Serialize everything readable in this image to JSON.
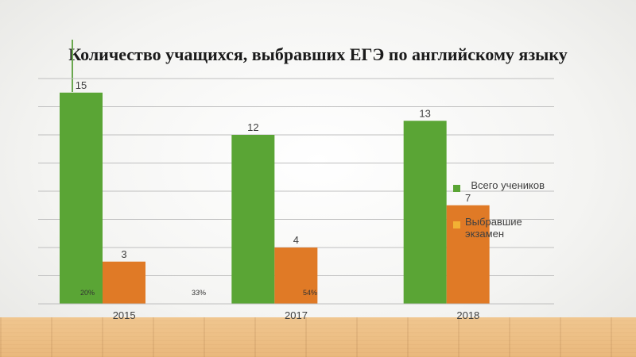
{
  "slide": {
    "title": "Количество учащихся, выбравших ЕГЭ по английскому языку"
  },
  "colors": {
    "series_total": "#5aa535",
    "series_chosen": "#e07a26",
    "gridline": "#bfbfbf",
    "axis_text": "#404040"
  },
  "chart_data": {
    "type": "bar",
    "title": "Количество учащихся, выбравших ЕГЭ по английскому языку",
    "categories": [
      "2015",
      "2017",
      "2018"
    ],
    "series": [
      {
        "name": "Всего учеников",
        "values": [
          15,
          12,
          13
        ]
      },
      {
        "name": "Выбравшие экзамен",
        "values": [
          3,
          4,
          7
        ]
      }
    ],
    "percent_annotations": [
      "20%",
      "33%",
      "54%"
    ],
    "ylim": [
      0,
      16
    ],
    "grid": true,
    "legend_position": "right"
  }
}
